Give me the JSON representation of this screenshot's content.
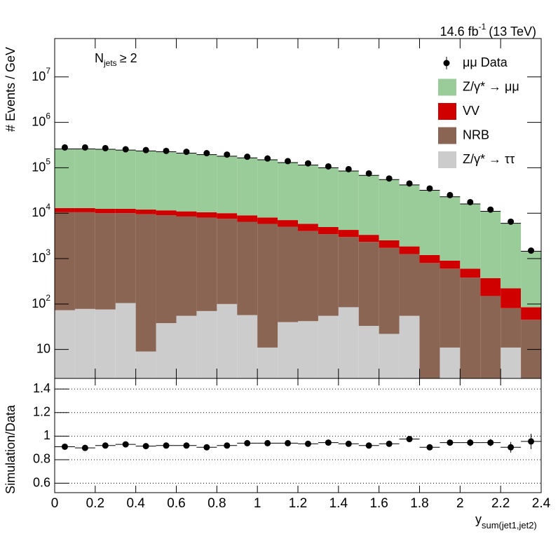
{
  "chart_data": [
    {
      "type": "stacked_histogram",
      "ylabel": "# Events / GeV",
      "annotation": {
        "text": "N",
        "sub": "jets",
        "rest": "≥ 2"
      },
      "lumi": {
        "text": "14.6 fb",
        "sup": "-1",
        "rest": "(13 TeV)"
      },
      "bins": [
        0,
        0.1,
        0.2,
        0.3,
        0.4,
        0.5,
        0.6,
        0.7,
        0.8,
        0.9,
        1,
        1.1,
        1.2,
        1.3,
        1.4,
        1.5,
        1.6,
        1.7,
        1.8,
        1.9,
        2,
        2.1,
        2.2,
        2.3,
        2.4
      ],
      "log_y": true,
      "ylim": [
        2.3,
        70000000
      ],
      "yticks": [
        10,
        {
          "value": 100,
          "label": "10",
          "exponent": "2"
        },
        {
          "value": 1000,
          "label": "10",
          "exponent": "3"
        },
        {
          "value": 10000,
          "label": "10",
          "exponent": "4"
        },
        {
          "value": 100000,
          "label": "10",
          "exponent": "5"
        },
        {
          "value": 1000000,
          "label": "10",
          "exponent": "6"
        },
        {
          "value": 10000000,
          "label": "10",
          "exponent": "7"
        }
      ],
      "legend": "upper right",
      "series": [
        {
          "name": "Z/γ* → ττ",
          "color": "#cccccc",
          "values": [
            73,
            78,
            76,
            105,
            9,
            38,
            55,
            70,
            100,
            57,
            11,
            40,
            42,
            55,
            85,
            33,
            22,
            55,
            0,
            11,
            0,
            0,
            11,
            0
          ]
        },
        {
          "name": "NRB",
          "color": "#8b6553",
          "values": [
            10400,
            10400,
            9900,
            9900,
            9500,
            9000,
            8400,
            7900,
            7400,
            6400,
            5800,
            5000,
            4000,
            3400,
            2900,
            2300,
            1700,
            1200,
            800,
            590,
            380,
            150,
            70,
            45
          ]
        },
        {
          "name": "VV",
          "color": "#d10000",
          "values": [
            2500,
            2500,
            2500,
            2500,
            2500,
            2500,
            2500,
            2500,
            2500,
            2500,
            2200,
            2000,
            1800,
            1500,
            1300,
            1000,
            800,
            600,
            400,
            300,
            220,
            220,
            140,
            40
          ]
        },
        {
          "name": "Z/γ* → μμ",
          "color": "#99cc99",
          "values": [
            247000,
            247000,
            242500,
            232500,
            223000,
            213500,
            199000,
            184500,
            170000,
            156000,
            142000,
            123000,
            109200,
            95000,
            80700,
            64700,
            52500,
            40100,
            30800,
            22100,
            15400,
            10630,
            5780,
            1365
          ]
        }
      ],
      "data": {
        "name": "μμ Data",
        "color": "#000000",
        "values": [
          280000,
          280000,
          270000,
          255000,
          245000,
          235000,
          225000,
          210000,
          195000,
          175000,
          160000,
          140000,
          125000,
          107000,
          93000,
          75000,
          58000,
          45000,
          35000,
          25000,
          17500,
          12000,
          6500,
          1500
        ]
      }
    },
    {
      "type": "ratio",
      "ylabel": "Simulation/Data",
      "xlabel": {
        "text": "y",
        "sub": "sum(jet1,jet2)"
      },
      "xlim": [
        0,
        2.4
      ],
      "xticks": [
        0,
        0.2,
        0.4,
        0.6,
        0.8,
        1,
        1.2,
        1.4,
        1.6,
        1.8,
        2,
        2.2,
        2.4
      ],
      "ylim": [
        0.52,
        1.49
      ],
      "yticks": [
        0.6,
        0.8,
        1,
        1.2,
        1.4
      ],
      "grid": true,
      "values": [
        0.91,
        0.9,
        0.92,
        0.93,
        0.915,
        0.92,
        0.92,
        0.905,
        0.92,
        0.94,
        0.94,
        0.94,
        0.935,
        0.945,
        0.935,
        0.92,
        0.935,
        0.975,
        0.905,
        0.945,
        0.945,
        0.945,
        0.905,
        0.955
      ],
      "errors": [
        0.01,
        0.01,
        0.01,
        0.01,
        0.01,
        0.01,
        0.01,
        0.01,
        0.01,
        0.01,
        0.01,
        0.01,
        0.01,
        0.01,
        0.01,
        0.01,
        0.015,
        0.015,
        0.02,
        0.025,
        0.03,
        0.03,
        0.045,
        0.065
      ]
    }
  ]
}
